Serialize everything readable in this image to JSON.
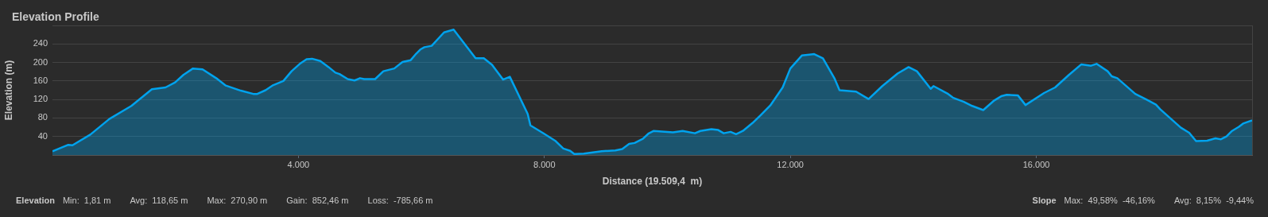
{
  "chart_data": {
    "type": "area",
    "title": "Elevation Profile",
    "xlabel": "Distance (19.509,4  m)",
    "ylabel": "Elevation (m)",
    "x": [
      0,
      258,
      325,
      615,
      926,
      1283,
      1617,
      1839,
      1995,
      2129,
      2285,
      2441,
      2663,
      2819,
      3064,
      3265,
      3331,
      3465,
      3576,
      3755,
      3888,
      4022,
      4133,
      4222,
      4356,
      4490,
      4601,
      4668,
      4802,
      4913,
      5002,
      5069,
      5247,
      5381,
      5559,
      5692,
      5826,
      5915,
      5982,
      6049,
      6167,
      6368,
      6524,
      6881,
      7015,
      7148,
      7327,
      7438,
      7728,
      7773,
      7996,
      8174,
      8308,
      8419,
      8486,
      8642,
      8932,
      9155,
      9266,
      9378,
      9467,
      9601,
      9690,
      9779,
      10091,
      10248,
      10448,
      10537,
      10716,
      10827,
      10916,
      11028,
      11117,
      11228,
      11384,
      11518,
      11674,
      11875,
      12000,
      12187,
      12388,
      12530,
      12716,
      12800,
      13069,
      13272,
      13496,
      13744,
      13923,
      14058,
      14283,
      14328,
      14553,
      14643,
      14822,
      14957,
      15137,
      15317,
      15429,
      15519,
      15699,
      15825,
      16126,
      16306,
      16530,
      16733,
      16890,
      16980,
      17160,
      17227,
      17317,
      17609,
      17789,
      17946,
      18014,
      18351,
      18486,
      18598,
      18778,
      18913,
      19003,
      19093,
      19183,
      19295,
      19363,
      19509
    ],
    "series": [
      {
        "color": "#00a3ee",
        "values": [
          8,
          22,
          21,
          44,
          78,
          106,
          142,
          146,
          157,
          173,
          187,
          185,
          166,
          150,
          139,
          132,
          132,
          140,
          150,
          160,
          181,
          197,
          207,
          208,
          203,
          190,
          178,
          175,
          164,
          161,
          166,
          164,
          164,
          181,
          187,
          201,
          205,
          219,
          228,
          233,
          236,
          265,
          271,
          209,
          209,
          195,
          163,
          169,
          89,
          64,
          46,
          31,
          14,
          9,
          2,
          3,
          8,
          10,
          13,
          24,
          26,
          35,
          46,
          52,
          49,
          52,
          47,
          52,
          56,
          54,
          47,
          50,
          45,
          52,
          69,
          86,
          107,
          146,
          187,
          215,
          218,
          209,
          166,
          140,
          137,
          121,
          149,
          176,
          190,
          181,
          143,
          149,
          133,
          124,
          115,
          106,
          97,
          118,
          127,
          130,
          129,
          108,
          134,
          146,
          173,
          196,
          193,
          197,
          181,
          170,
          166,
          132,
          120,
          109,
          99,
          59,
          48,
          30,
          31,
          36,
          34,
          40,
          52,
          61,
          68,
          75
        ]
      }
    ],
    "xlim": [
      0,
      19509.4
    ],
    "xticks": [
      {
        "value": 4000,
        "label": "4.000"
      },
      {
        "value": 8000,
        "label": "8.000"
      },
      {
        "value": 12000,
        "label": "12.000"
      },
      {
        "value": 16000,
        "label": "16.000"
      }
    ],
    "ylim": [
      0,
      280
    ],
    "yticks": [
      40,
      80,
      120,
      160,
      200,
      240,
      {
        "value": 280,
        "label": null
      }
    ],
    "grid": "y",
    "legend": false,
    "marker": "none",
    "line_style": "solid",
    "annotations": [
      "Elevation",
      "Min:  1,81 m",
      "Avg:  118,65 m",
      "Max:  270,90 m",
      "Gain:  852,46 m",
      "Loss:  -785,66 m",
      "Slope",
      "Max:  49,58%  -46,16%",
      "Avg:  8,15%  -9,44%"
    ]
  }
}
